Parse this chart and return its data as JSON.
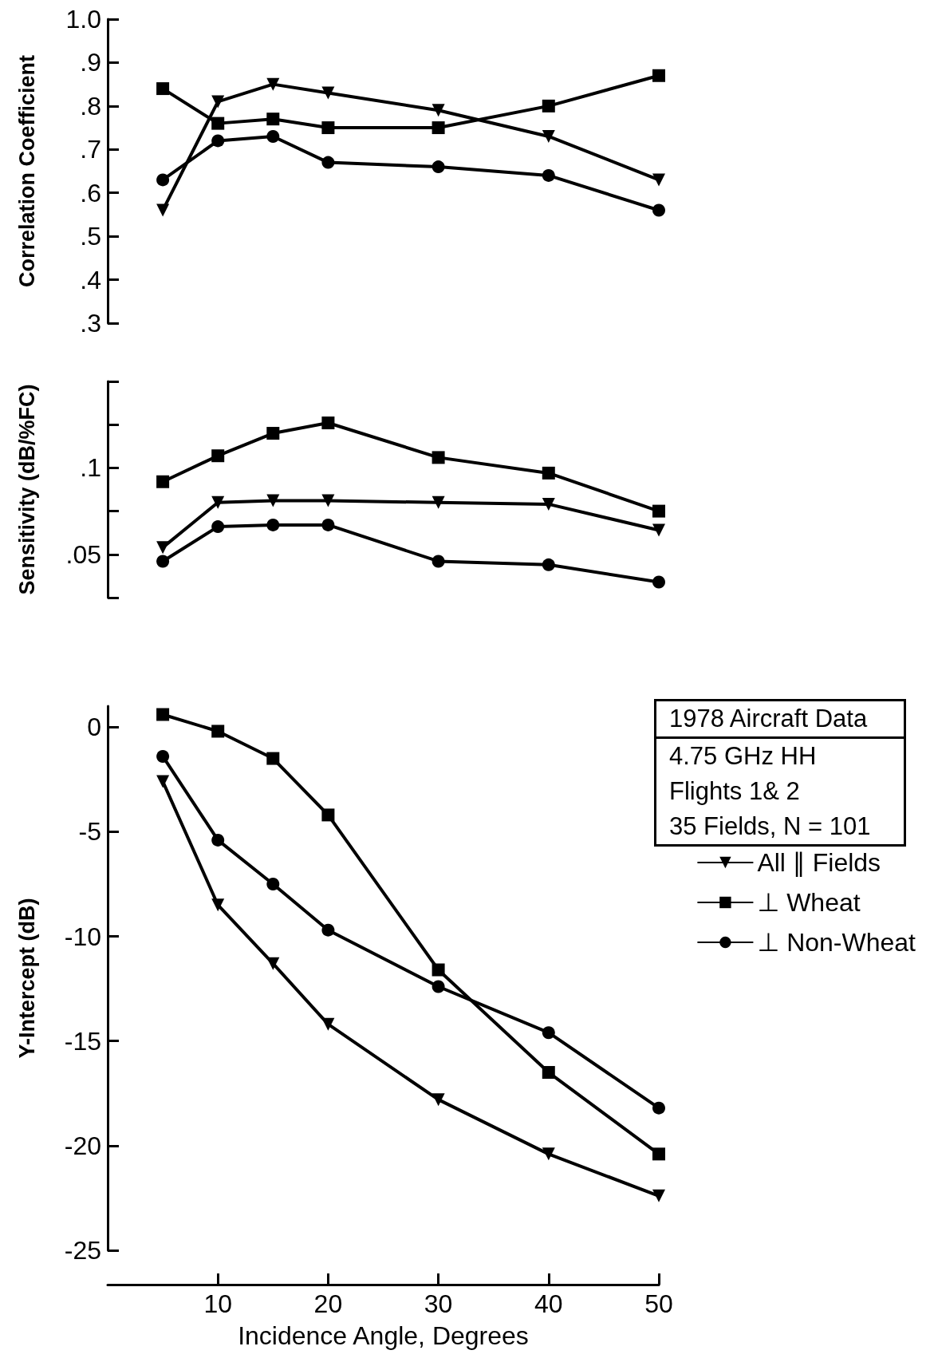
{
  "chart_data": [
    {
      "type": "line",
      "ylabel": "Correlation Coefficient",
      "x": [
        5,
        10,
        15,
        20,
        30,
        40,
        50
      ],
      "xlim": [
        0,
        50
      ],
      "ylim": [
        0.3,
        1.0
      ],
      "yticks": [
        {
          "value": 0.3,
          "label": ".3"
        },
        {
          "value": 0.4,
          "label": ".4"
        },
        {
          "value": 0.5,
          "label": ".5"
        },
        {
          "value": 0.6,
          "label": ".6"
        },
        {
          "value": 0.7,
          "label": ".7"
        },
        {
          "value": 0.8,
          "label": ".8"
        },
        {
          "value": 0.9,
          "label": ".9"
        },
        {
          "value": 1.0,
          "label": "1.0"
        }
      ],
      "tick_labels": "y",
      "line_style": "solid",
      "series": [
        {
          "color": "#000000",
          "marker": "triangle",
          "values": [
            0.56,
            0.81,
            0.85,
            0.83,
            0.79,
            0.73,
            0.63
          ]
        },
        {
          "color": "#000000",
          "marker": "square",
          "values": [
            0.84,
            0.76,
            0.77,
            0.75,
            0.75,
            0.8,
            0.87
          ]
        },
        {
          "color": "#000000",
          "marker": "circle",
          "values": [
            0.63,
            0.72,
            0.73,
            0.67,
            0.66,
            0.64,
            0.56
          ]
        }
      ]
    },
    {
      "type": "line",
      "ylabel": "Sensitivity (dB/%FC)",
      "x": [
        5,
        10,
        15,
        20,
        30,
        40,
        50
      ],
      "xlim": [
        0,
        50
      ],
      "ylim": [
        0.025,
        0.15
      ],
      "yticks": [
        {
          "value": 0.025,
          "label": null
        },
        {
          "value": 0.05,
          "label": ".05"
        },
        {
          "value": 0.075,
          "label": null
        },
        {
          "value": 0.1,
          "label": ".1"
        },
        {
          "value": 0.125,
          "label": null
        },
        {
          "value": 0.15,
          "label": null
        }
      ],
      "tick_labels": "y",
      "line_style": "solid",
      "series": [
        {
          "color": "#000000",
          "marker": "triangle",
          "values": [
            0.054,
            0.08,
            0.081,
            0.081,
            0.08,
            0.079,
            0.064
          ]
        },
        {
          "color": "#000000",
          "marker": "square",
          "values": [
            0.092,
            0.107,
            0.12,
            0.126,
            0.106,
            0.097,
            0.075
          ]
        },
        {
          "color": "#000000",
          "marker": "circle",
          "values": [
            0.046,
            0.066,
            0.067,
            0.067,
            0.046,
            0.044,
            0.034
          ]
        }
      ]
    },
    {
      "type": "line",
      "ylabel": "Y-Intercept (dB)",
      "xlabel": "Incidence Angle, Degrees",
      "x": [
        5,
        10,
        15,
        20,
        30,
        40,
        50
      ],
      "xlim": [
        0,
        50
      ],
      "xticks": [
        10,
        20,
        30,
        40,
        50
      ],
      "ylim": [
        -25,
        1
      ],
      "yticks": [
        -25,
        -20,
        -15,
        -10,
        -5,
        0
      ],
      "line_style": "solid",
      "legend": "right",
      "annotations": [
        "1978 Aircraft Data",
        "4.75 GHz HH",
        "Flights 1& 2",
        "35 Fields, N = 101"
      ],
      "series": [
        {
          "name": "All ∥ Fields",
          "color": "#000000",
          "marker": "triangle",
          "values": [
            -2.6,
            -8.5,
            -11.3,
            -14.2,
            -17.8,
            -20.4,
            -22.4
          ]
        },
        {
          "name": "⊥ Wheat",
          "color": "#000000",
          "marker": "square",
          "values": [
            0.6,
            -0.2,
            -1.5,
            -4.2,
            -11.6,
            -16.5,
            -20.4
          ]
        },
        {
          "name": "⊥ Non-Wheat",
          "color": "#000000",
          "marker": "circle",
          "values": [
            -1.4,
            -5.4,
            -7.5,
            -9.7,
            -12.4,
            -14.6,
            -18.2
          ]
        }
      ]
    }
  ]
}
